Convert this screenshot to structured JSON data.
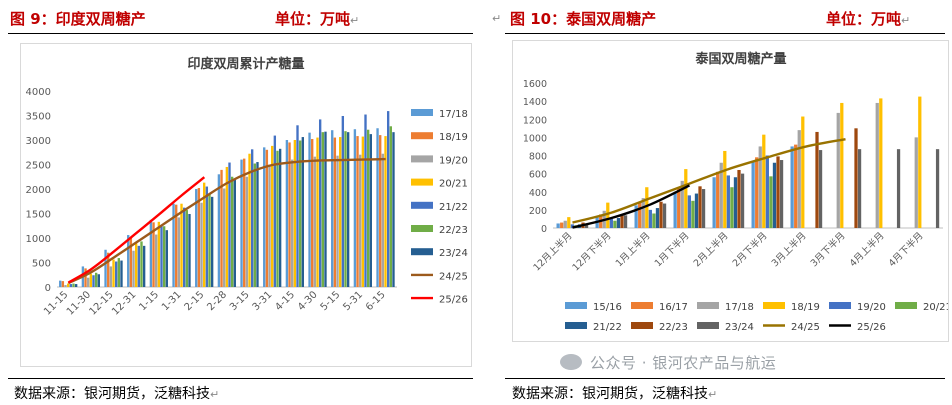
{
  "left": {
    "figure_title": "图 9：印度双周糖产",
    "unit": "单位：万吨",
    "source": "数据来源：银河期货，泛糖科技",
    "chart_data": {
      "type": "bar",
      "title": "印度双周累计产糖量",
      "categories": [
        "11-15",
        "11-30",
        "12-15",
        "12-31",
        "1-15",
        "1-31",
        "2-15",
        "2-28",
        "3-15",
        "3-31",
        "4-15",
        "4-30",
        "5-15",
        "5-31",
        "6-15"
      ],
      "ylim": [
        0,
        4000
      ],
      "yticks": [
        0,
        500,
        1000,
        1500,
        2000,
        2500,
        3000,
        3500,
        4000
      ],
      "grid": false,
      "legend_position": "right",
      "series": [
        {
          "name": "17/18",
          "color": "#5b9bd5",
          "kind": "bar",
          "values": [
            130,
            420,
            760,
            1060,
            1370,
            1700,
            2000,
            2300,
            2600,
            2850,
            3000,
            3150,
            3200,
            3220,
            3240
          ]
        },
        {
          "name": "18/19",
          "color": "#ed7d31",
          "kind": "bar",
          "values": [
            120,
            380,
            700,
            1000,
            1320,
            1680,
            2020,
            2390,
            2620,
            2800,
            2950,
            3020,
            3050,
            3080,
            3100
          ]
        },
        {
          "name": "19/20",
          "color": "#a5a5a5",
          "kind": "bar",
          "values": [
            40,
            190,
            420,
            740,
            1070,
            1420,
            1720,
            2010,
            2250,
            2500,
            2600,
            2660,
            2680,
            2700,
            2720
          ]
        },
        {
          "name": "20/21",
          "color": "#ffc000",
          "kind": "bar",
          "values": [
            70,
            270,
            560,
            890,
            1330,
            1700,
            2130,
            2450,
            2720,
            2880,
            3000,
            3050,
            3060,
            3070,
            3080
          ]
        },
        {
          "name": "21/22",
          "color": "#4472c4",
          "kind": "bar",
          "values": [
            60,
            240,
            520,
            840,
            1240,
            1620,
            2050,
            2540,
            2810,
            3090,
            3300,
            3420,
            3490,
            3520,
            3590
          ]
        },
        {
          "name": "22/23",
          "color": "#70ad47",
          "kind": "bar",
          "values": [
            70,
            290,
            590,
            930,
            1240,
            1570,
            1900,
            2250,
            2520,
            2780,
            2990,
            3160,
            3180,
            3210,
            3280
          ]
        },
        {
          "name": "23/24",
          "color": "#255e91",
          "kind": "bar",
          "values": [
            60,
            260,
            540,
            840,
            1160,
            1490,
            1840,
            2190,
            2550,
            2820,
            3060,
            3170,
            3160,
            3120,
            3160
          ]
        },
        {
          "name": "24/25",
          "color": "#9c5a1c",
          "kind": "line",
          "values": [
            80,
            300,
            600,
            910,
            1220,
            1530,
            1830,
            2120,
            2340,
            2490,
            2550,
            2580,
            2590,
            2600,
            2610
          ]
        },
        {
          "name": "25/26",
          "color": "#ff0000",
          "kind": "line",
          "values": [
            90,
            360,
            720,
            1100,
            1480,
            1870,
            2240,
            null,
            null,
            null,
            null,
            null,
            null,
            null,
            null
          ]
        }
      ]
    }
  },
  "right": {
    "figure_title": "图 10：泰国双周糖产",
    "unit": "单位：万吨",
    "source": "数据来源：银河期货，泛糖科技",
    "watermark": "公众号 · 银河农产品与航运",
    "chart_data": {
      "type": "bar",
      "title": "泰国双周糖产量",
      "categories": [
        "12月上半月",
        "12月下半月",
        "1月上半月",
        "1月下半月",
        "2月上半月",
        "2月下半月",
        "3月上半月",
        "3月下半月",
        "4月上半月",
        "4月下半月"
      ],
      "ylim": [
        0,
        1600
      ],
      "yticks": [
        0,
        200,
        400,
        600,
        800,
        1000,
        1200,
        1400,
        1600
      ],
      "grid": false,
      "legend_position": "bottom",
      "series": [
        {
          "name": "15/16",
          "color": "#5b9bd5",
          "kind": "bar",
          "values": [
            50,
            120,
            250,
            400,
            560,
            730,
            900,
            null,
            null,
            null
          ]
        },
        {
          "name": "16/17",
          "color": "#ed7d31",
          "kind": "bar",
          "values": [
            60,
            150,
            290,
            450,
            620,
            780,
            920,
            null,
            null,
            null
          ]
        },
        {
          "name": "17/18",
          "color": "#a5a5a5",
          "kind": "bar",
          "values": [
            80,
            190,
            330,
            520,
            720,
            900,
            1080,
            1270,
            1380,
            1000
          ]
        },
        {
          "name": "18/19",
          "color": "#ffc000",
          "kind": "bar",
          "values": [
            120,
            280,
            450,
            650,
            850,
            1030,
            1230,
            1380,
            1430,
            1450
          ]
        },
        {
          "name": "19/20",
          "color": "#4472c4",
          "kind": "bar",
          "values": [
            40,
            100,
            200,
            360,
            580,
            800,
            null,
            null,
            null,
            null
          ]
        },
        {
          "name": "20/21",
          "color": "#70ad47",
          "kind": "bar",
          "values": [
            30,
            80,
            160,
            300,
            450,
            570,
            null,
            null,
            null,
            null
          ]
        },
        {
          "name": "21/22",
          "color": "#255e91",
          "kind": "bar",
          "values": [
            40,
            110,
            220,
            380,
            560,
            720,
            null,
            null,
            null,
            null
          ]
        },
        {
          "name": "22/23",
          "color": "#9e480e",
          "kind": "bar",
          "values": [
            60,
            150,
            290,
            460,
            640,
            790,
            1060,
            1100,
            null,
            null
          ]
        },
        {
          "name": "23/24",
          "color": "#636363",
          "kind": "bar",
          "values": [
            50,
            140,
            270,
            430,
            600,
            750,
            860,
            870,
            870,
            870
          ]
        },
        {
          "name": "24/25",
          "color": "#997300",
          "kind": "line",
          "values": [
            60,
            170,
            330,
            490,
            650,
            780,
            900,
            980,
            null,
            null
          ]
        },
        {
          "name": "25/26",
          "color": "#000000",
          "kind": "line",
          "values": [
            5,
            110,
            260,
            470,
            null,
            null,
            null,
            null,
            null,
            null
          ]
        }
      ]
    }
  }
}
